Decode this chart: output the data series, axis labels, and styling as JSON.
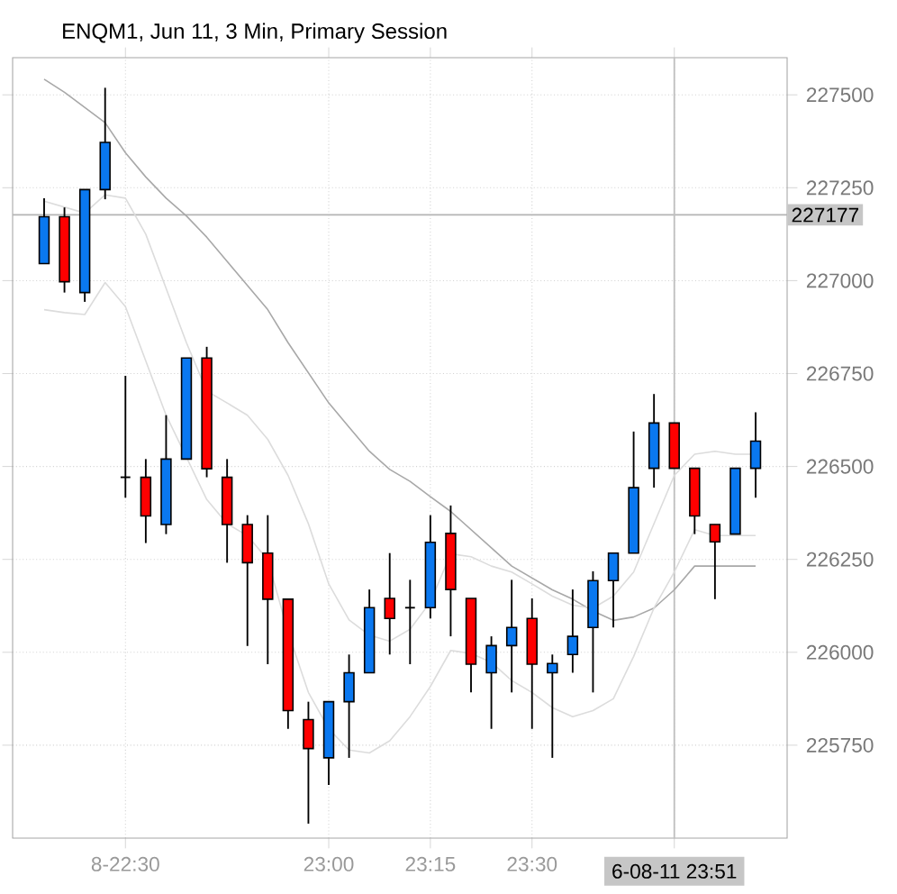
{
  "chart_data": {
    "type": "candlestick",
    "title": "ENQM1, Jun 11, 3 Min, Primary Session",
    "categories": [
      null,
      null,
      null,
      null,
      "8-22:30",
      null,
      null,
      null,
      null,
      null,
      null,
      null,
      null,
      null,
      "23:00",
      null,
      null,
      null,
      null,
      "23:15",
      null,
      null,
      null,
      null,
      "23:30",
      null,
      null,
      null,
      null,
      null,
      null,
      "6-08-11 23:51",
      null,
      null,
      null,
      null
    ],
    "ohlc": [
      [
        227046,
        227222,
        227045,
        227172
      ],
      [
        227172,
        227197,
        226968,
        226997
      ],
      [
        226968,
        227245,
        226943,
        227245
      ],
      [
        227245,
        227519,
        227219,
        227372
      ],
      [
        226471,
        226744,
        226416,
        226471
      ],
      [
        226471,
        226520,
        226294,
        226367
      ],
      [
        226344,
        226638,
        226318,
        226520
      ],
      [
        226520,
        226792,
        226520,
        226792
      ],
      [
        226792,
        226822,
        226471,
        226494
      ],
      [
        226471,
        226520,
        226241,
        226344
      ],
      [
        226344,
        226369,
        226017,
        226241
      ],
      [
        226267,
        226369,
        225968,
        226143
      ],
      [
        226143,
        226143,
        225794,
        225843
      ],
      [
        225819,
        225867,
        225539,
        225741
      ],
      [
        225716,
        225867,
        225643,
        225867
      ],
      [
        225867,
        225994,
        225716,
        225945
      ],
      [
        225945,
        226169,
        225945,
        226120
      ],
      [
        226145,
        226267,
        225994,
        226091
      ],
      [
        226120,
        226195,
        225968,
        226120
      ],
      [
        226120,
        226369,
        226091,
        226296
      ],
      [
        226320,
        226395,
        226043,
        226169
      ],
      [
        226145,
        226145,
        225892,
        225968
      ],
      [
        225945,
        226043,
        225794,
        226018
      ],
      [
        226018,
        226195,
        225892,
        226067
      ],
      [
        226091,
        226145,
        225794,
        225968
      ],
      [
        225945,
        225994,
        225716,
        225970
      ],
      [
        225994,
        226169,
        225945,
        226043
      ],
      [
        226067,
        226218,
        225892,
        226193
      ],
      [
        226193,
        226267,
        226067,
        226267
      ],
      [
        226267,
        226594,
        226267,
        226443
      ],
      [
        226495,
        226695,
        226443,
        226617
      ],
      [
        226617,
        226617,
        226495,
        226495
      ],
      [
        226495,
        226495,
        226318,
        226367
      ],
      [
        226344,
        226344,
        226143,
        226297
      ],
      [
        226318,
        226495,
        226318,
        226495
      ],
      [
        226495,
        226646,
        226416,
        226568
      ]
    ],
    "colors": [
      "#0a78f0",
      "#ff0000",
      "#0a78f0",
      "#0a78f0",
      "#000000",
      "#ff0000",
      "#0a78f0",
      "#0a78f0",
      "#ff0000",
      "#ff0000",
      "#ff0000",
      "#ff0000",
      "#ff0000",
      "#ff0000",
      "#0a78f0",
      "#0a78f0",
      "#0a78f0",
      "#ff0000",
      "#000000",
      "#0a78f0",
      "#ff0000",
      "#ff0000",
      "#0a78f0",
      "#0a78f0",
      "#ff0000",
      "#0a78f0",
      "#0a78f0",
      "#0a78f0",
      "#0a78f0",
      "#0a78f0",
      "#0a78f0",
      "#ff0000",
      "#ff0000",
      "#ff0000",
      "#0a78f0",
      "#0a78f0"
    ],
    "series": [
      {
        "type": "line",
        "color": "#a8a8a8",
        "values": [
          227542,
          227507,
          227466,
          227425,
          227344,
          227279,
          227222,
          227174,
          227117,
          227052,
          226987,
          226922,
          226833,
          226752,
          226671,
          226606,
          226541,
          226492,
          226460,
          226419,
          226379,
          226330,
          226281,
          226232,
          226200,
          226168,
          226143,
          226111,
          226086,
          226095,
          226119,
          226168,
          226232,
          226232,
          226232,
          226232
        ]
      },
      {
        "type": "line",
        "color": "#dcdcdc",
        "values": [
          227214,
          227198,
          227182,
          227231,
          227222,
          227125,
          226979,
          226833,
          226703,
          226671,
          226638,
          226573,
          226476,
          226346,
          226184,
          226087,
          226046,
          226030,
          226062,
          226135,
          226265,
          226257,
          226232,
          226216,
          226184,
          226151,
          226127,
          226119,
          226151,
          226216,
          226346,
          226476,
          226533,
          226541,
          226533,
          226533
        ]
      },
      {
        "type": "line",
        "color": "#dcdcdc",
        "values": [
          226922,
          226914,
          226909,
          226995,
          226930,
          226784,
          226638,
          226525,
          226411,
          226346,
          226314,
          226249,
          226054,
          225892,
          225794,
          225737,
          225729,
          225762,
          225827,
          225908,
          226005,
          225997,
          225973,
          225924,
          225892,
          225851,
          225827,
          225843,
          225875,
          225989,
          226119,
          226216,
          226330,
          226314,
          226314,
          226314
        ]
      }
    ],
    "ylim": [
      225500,
      227600
    ],
    "yticks": [
      225750,
      226000,
      226250,
      226500,
      226750,
      227000,
      227250,
      227500
    ],
    "grid": true,
    "ref_lines": [
      {
        "axis": "y",
        "value": 227177,
        "label": "227177",
        "color": "#b4b4b4"
      },
      {
        "axis": "x",
        "value": "6-08-11 23:51",
        "color": "#c0c0c0"
      }
    ]
  }
}
